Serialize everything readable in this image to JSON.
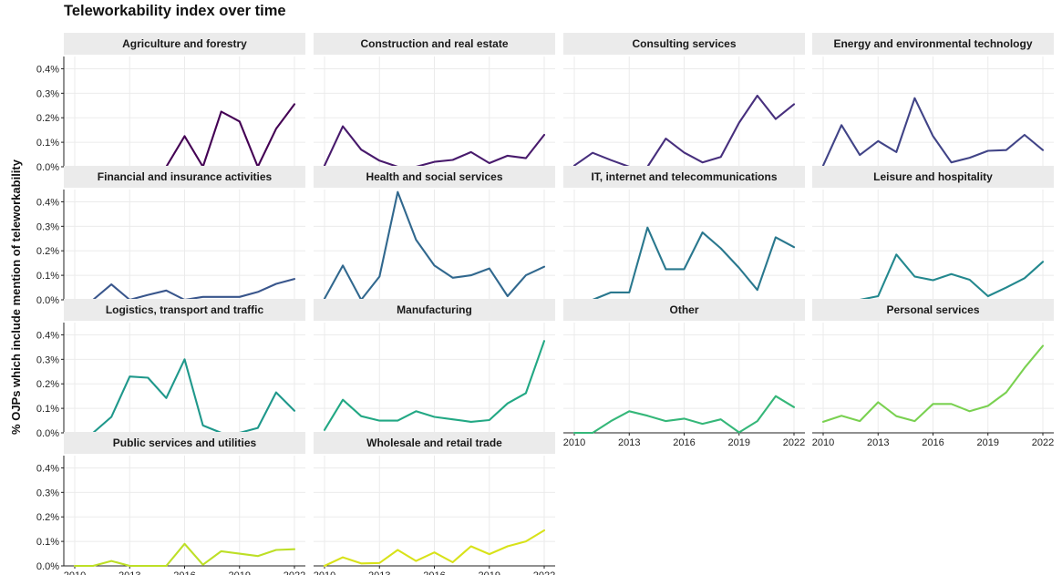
{
  "chart_data": {
    "type": "line",
    "title": "Teleworkability index over time",
    "ylabel": "% OJPs which include mention of teleworkability",
    "xlabel": "",
    "x": [
      2010,
      2011,
      2012,
      2013,
      2014,
      2015,
      2016,
      2017,
      2018,
      2019,
      2020,
      2021,
      2022
    ],
    "xlim": [
      2010,
      2022
    ],
    "x_ticks": [
      2010,
      2013,
      2016,
      2019,
      2022
    ],
    "ylim": [
      0,
      0.45
    ],
    "y_ticks": [
      0,
      0.1,
      0.2,
      0.3,
      0.4
    ],
    "y_tick_labels": [
      "0.0%",
      "0.1%",
      "0.2%",
      "0.3%",
      "0.4%"
    ],
    "grid": true,
    "legend": "none",
    "facets": [
      {
        "name": "Agriculture and forestry",
        "color": "#440154",
        "values": [
          0,
          0,
          0,
          0,
          0,
          0,
          0.125,
          0,
          0.225,
          0.185,
          0,
          0.155,
          0.255
        ]
      },
      {
        "name": "Construction and real estate",
        "color": "#481a6c",
        "values": [
          0.005,
          0.165,
          0.07,
          0.025,
          0,
          0,
          0.02,
          0.028,
          0.06,
          0.015,
          0.045,
          0.035,
          0.13
        ]
      },
      {
        "name": "Consulting services",
        "color": "#472f7d",
        "values": [
          0.005,
          0.057,
          0.027,
          0,
          0,
          0.115,
          0.058,
          0.018,
          0.04,
          0.18,
          0.29,
          0.195,
          0.255
        ]
      },
      {
        "name": "Energy and environmental technology",
        "color": "#414487",
        "values": [
          0.005,
          0.17,
          0.048,
          0.105,
          0.06,
          0.28,
          0.125,
          0.018,
          0.037,
          0.065,
          0.068,
          0.13,
          0.068
        ]
      },
      {
        "name": "Financial and insurance activities",
        "color": "#39568c",
        "values": [
          0,
          0,
          0.063,
          0,
          0.02,
          0.038,
          0,
          0.012,
          0.012,
          0.012,
          0.032,
          0.065,
          0.085
        ]
      },
      {
        "name": "Health and social services",
        "color": "#31688e",
        "values": [
          0.005,
          0.14,
          0,
          0.095,
          0.44,
          0.245,
          0.14,
          0.09,
          0.1,
          0.128,
          0.015,
          0.1,
          0.135
        ]
      },
      {
        "name": "IT, internet and telecommunications",
        "color": "#2a788e",
        "values": [
          0,
          0,
          0.03,
          0.03,
          0.295,
          0.125,
          0.125,
          0.275,
          0.21,
          0.13,
          0.04,
          0.255,
          0.215
        ]
      },
      {
        "name": "Leisure and hospitality",
        "color": "#23888e",
        "values": [
          0,
          0,
          0,
          0.015,
          0.185,
          0.095,
          0.08,
          0.105,
          0.082,
          0.015,
          0.05,
          0.088,
          0.155
        ]
      },
      {
        "name": "Logistics, transport and traffic",
        "color": "#1f988b",
        "values": [
          0,
          0,
          0.065,
          0.23,
          0.225,
          0.142,
          0.3,
          0.03,
          0,
          0,
          0.02,
          0.165,
          0.09
        ]
      },
      {
        "name": "Manufacturing",
        "color": "#22a884",
        "values": [
          0.012,
          0.135,
          0.068,
          0.05,
          0.05,
          0.088,
          0.065,
          0.055,
          0.045,
          0.052,
          0.12,
          0.162,
          0.375
        ]
      },
      {
        "name": "Other",
        "color": "#35b779",
        "values": [
          0,
          0,
          0.048,
          0.088,
          0.07,
          0.048,
          0.058,
          0.037,
          0.055,
          0.002,
          0.048,
          0.15,
          0.105
        ]
      },
      {
        "name": "Personal services",
        "color": "#7ad151",
        "values": [
          0.045,
          0.07,
          0.048,
          0.125,
          0.068,
          0.048,
          0.118,
          0.118,
          0.088,
          0.11,
          0.165,
          0.265,
          0.355
        ]
      },
      {
        "name": "Public services and utilities",
        "color": "#bddf26",
        "values": [
          0,
          0,
          0.02,
          0,
          0,
          0,
          0.09,
          0.005,
          0.06,
          0.05,
          0.04,
          0.065,
          0.068
        ]
      },
      {
        "name": "Wholesale and retail trade",
        "color": "#d8e219",
        "values": [
          0,
          0.035,
          0.01,
          0.012,
          0.065,
          0.02,
          0.055,
          0.015,
          0.08,
          0.048,
          0.08,
          0.1,
          0.145
        ]
      }
    ]
  }
}
